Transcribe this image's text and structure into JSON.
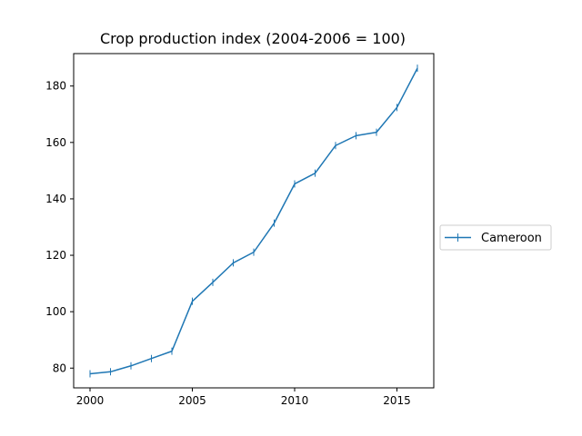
{
  "chart_data": {
    "type": "line",
    "title": "Crop production index (2004-2006 = 100)",
    "xlabel": "",
    "ylabel": "",
    "xlim": [
      1999.2,
      2016.8
    ],
    "ylim": [
      73.0,
      191.5
    ],
    "x_ticks": [
      2000,
      2005,
      2010,
      2015
    ],
    "y_ticks": [
      80,
      100,
      120,
      140,
      160,
      180
    ],
    "grid": false,
    "legend_position": "right",
    "series": [
      {
        "name": "Cameroon",
        "color": "#1f77b4",
        "marker": "vertical-line",
        "x": [
          2000,
          2001,
          2002,
          2003,
          2004,
          2005,
          2006,
          2007,
          2008,
          2009,
          2010,
          2011,
          2012,
          2013,
          2014,
          2015,
          2016
        ],
        "y": [
          78.0,
          78.7,
          80.8,
          83.4,
          86.0,
          103.7,
          110.4,
          117.3,
          121.1,
          131.4,
          145.3,
          149.1,
          158.9,
          162.4,
          163.6,
          172.4,
          186.3
        ]
      }
    ]
  }
}
